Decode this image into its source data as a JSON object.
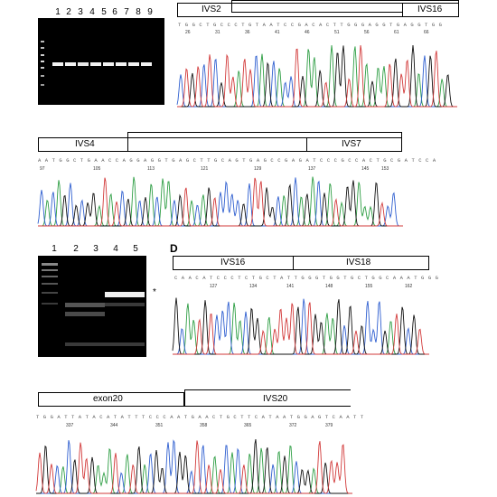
{
  "gel1": {
    "lanes": [
      "1",
      "2",
      "3",
      "4",
      "5",
      "6",
      "7",
      "8",
      "9"
    ]
  },
  "panel_b": {
    "boxes": [
      "IVS2",
      "IVS16"
    ],
    "sequence": "T G G C T G C C C T G T A A T C C G A C A C T T G G G A G G T G A G G T G G",
    "positions": [
      "26",
      "31",
      "36",
      "41",
      "46",
      "51",
      "56",
      "61",
      "66"
    ]
  },
  "panel_c": {
    "boxes": [
      "IVS4",
      "IVS7"
    ],
    "sequence": "A A T G G C T G A A C C A G G A G G T G A G C T T G C A G T G A G C C G A G A T C C C G C C A C T G C G A T C C A",
    "positions": [
      "97",
      "105",
      "113",
      "121",
      "129",
      "137",
      "145",
      "153"
    ]
  },
  "gel2": {
    "lanes": [
      "1",
      "2",
      "3",
      "4",
      "5"
    ],
    "marker": "*"
  },
  "panel_d": {
    "letter": "D",
    "boxes": [
      "IVS16",
      "IVS18"
    ],
    "sequence": "C A A C A T C C C T C T G C T A T T G G G T G G T G C T G G C A A A T G G G",
    "positions": [
      "127",
      "134",
      "141",
      "148",
      "155",
      "162"
    ]
  },
  "panel_e": {
    "boxes": [
      "exon20",
      "IVS20"
    ],
    "sequence": "T G G A T T A T A C A T A T T T C C C A A T G A A C T G C T T C A T A A T G G A G T C A A T T",
    "positions": [
      "337",
      "344",
      "351",
      "358",
      "365",
      "372",
      "379"
    ]
  },
  "colors": {
    "A": "#2e9e44",
    "C": "#2f5fd0",
    "G": "#111111",
    "T": "#d23a3a",
    "gel": "#000000"
  }
}
